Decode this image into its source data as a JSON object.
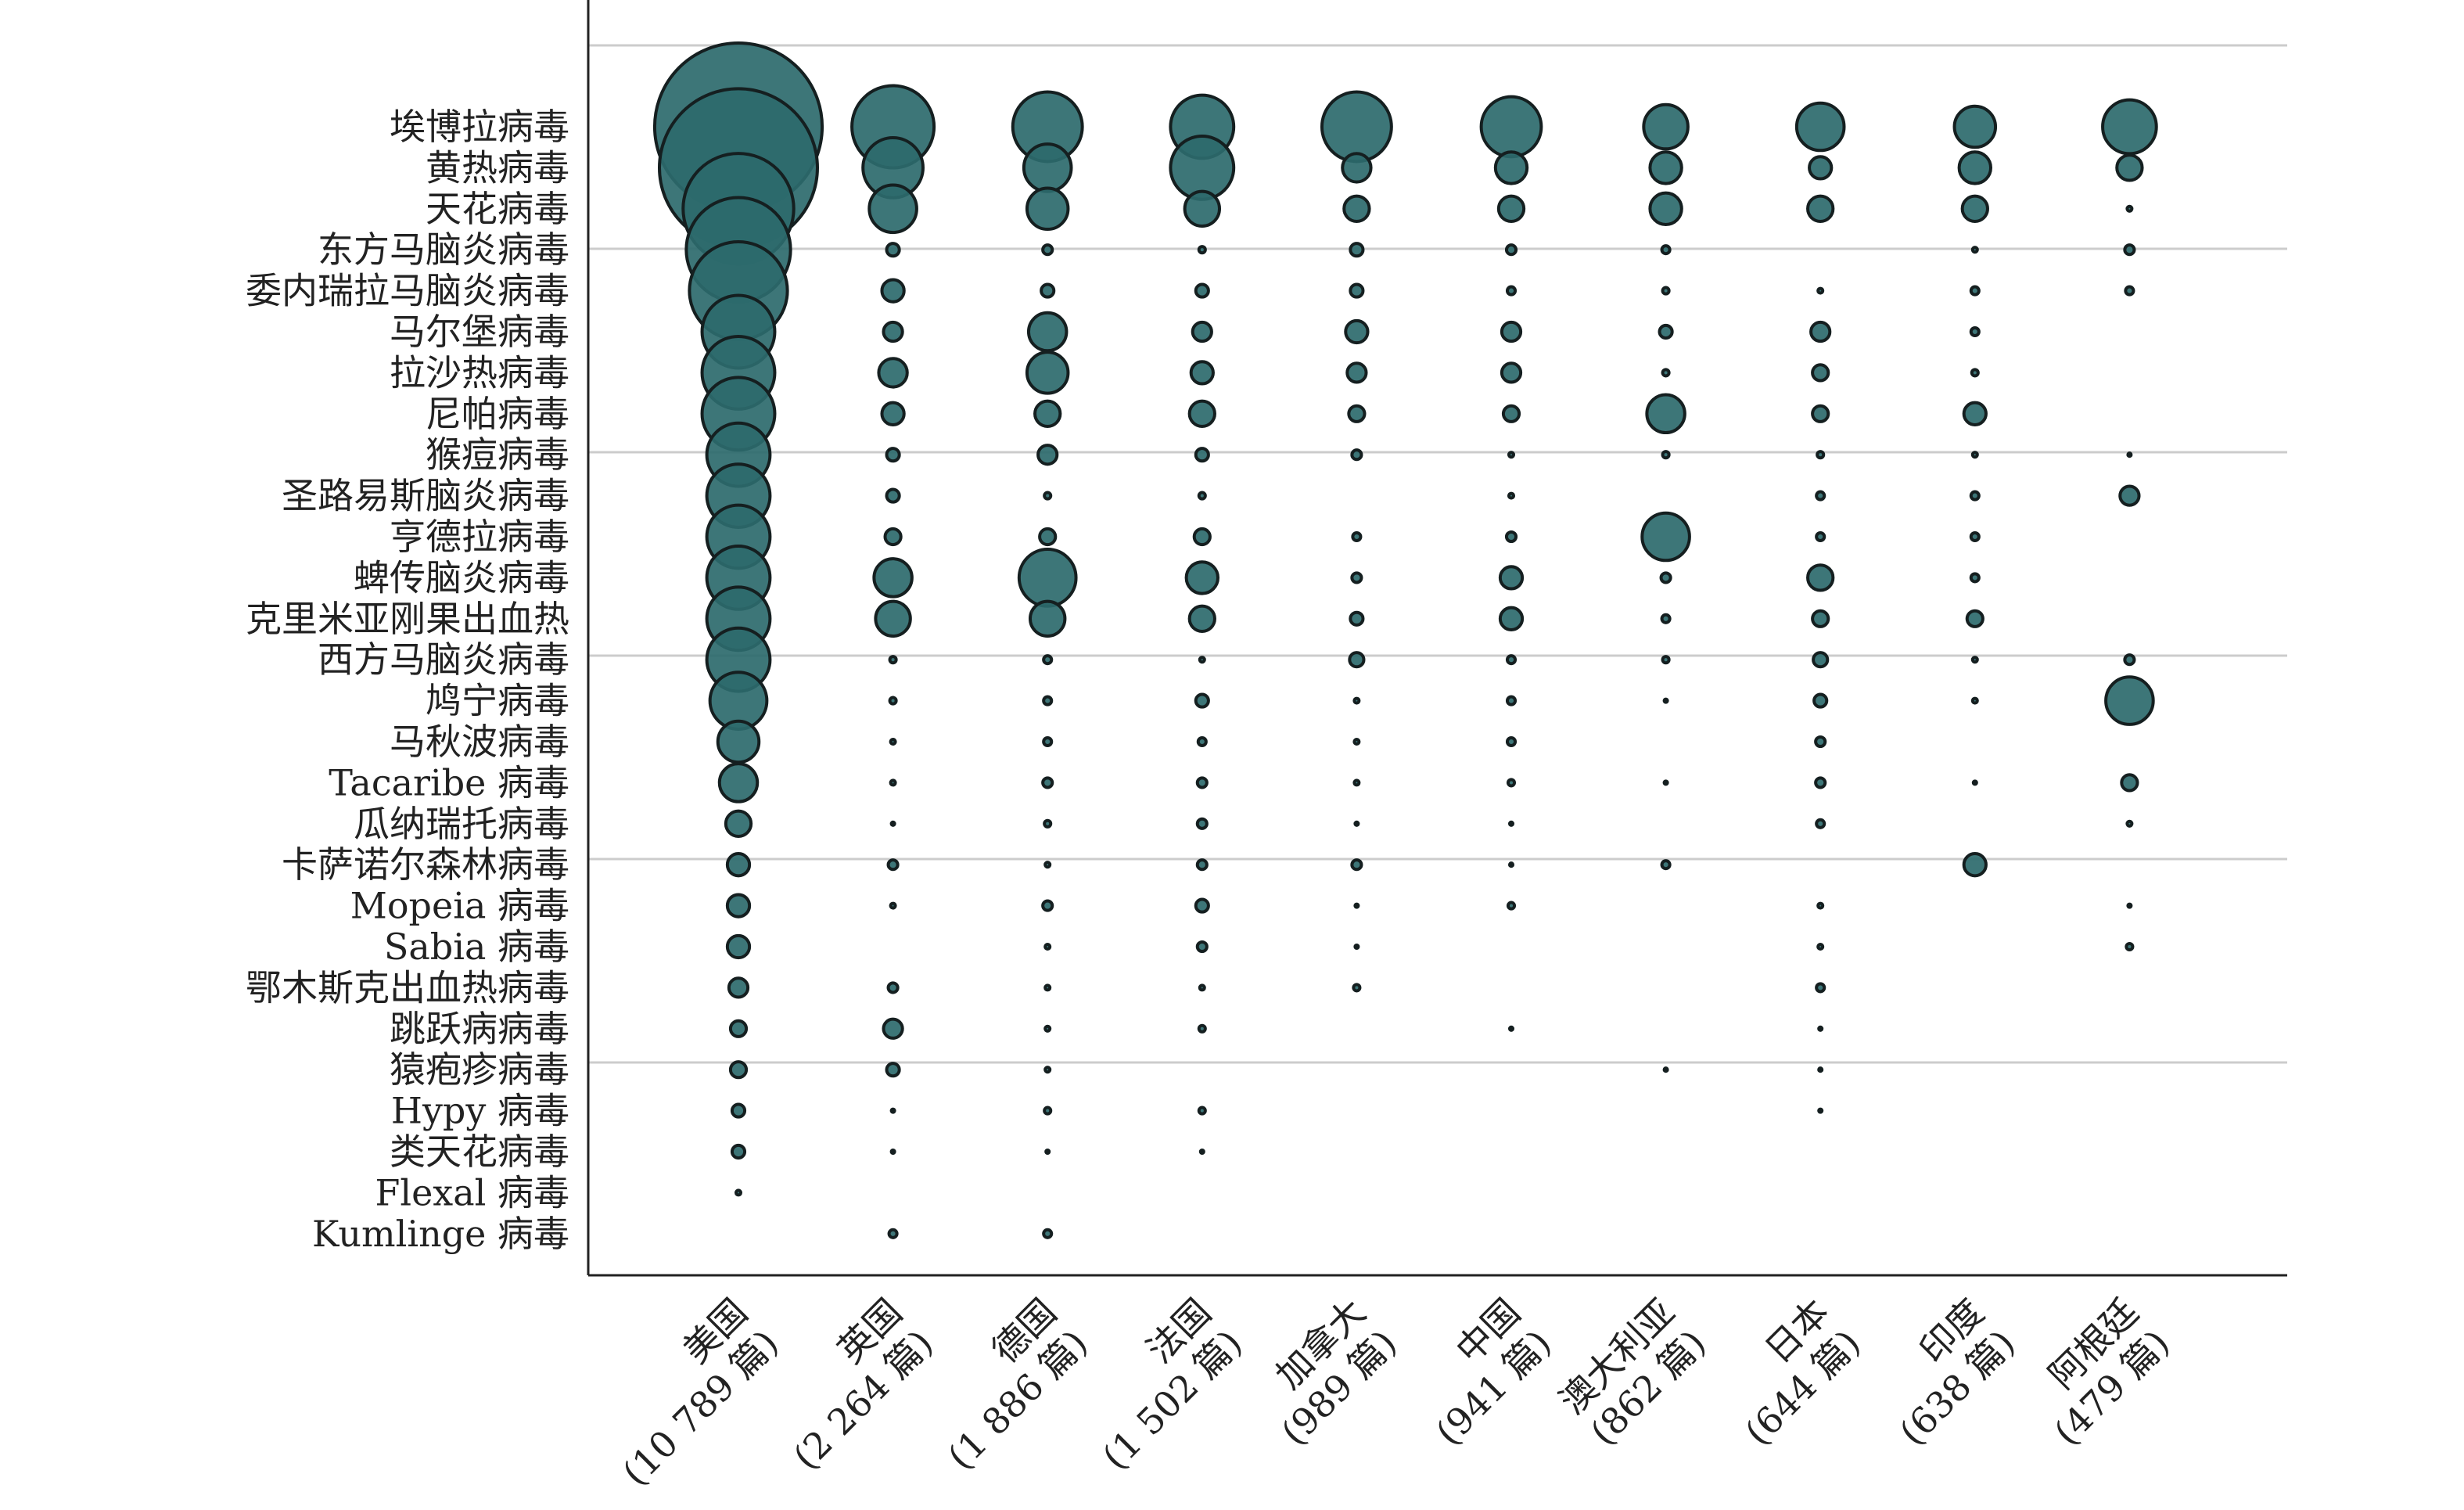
{
  "chart_data": {
    "type": "scatter",
    "subtype": "bubble",
    "title": "",
    "xlabel": "",
    "ylabel": "",
    "grid": "horizontal",
    "colors": {
      "bubble_fill": "#2d6a6d",
      "bubble_stroke": "#151f20",
      "grid": "#cccccc",
      "axis": "#222222"
    },
    "countries": [
      {
        "name": "美国",
        "count": "(10 789 篇)"
      },
      {
        "name": "英国",
        "count": "(2 264 篇)"
      },
      {
        "name": "德国",
        "count": "(1 886 篇)"
      },
      {
        "name": "法国",
        "count": "(1 502 篇)"
      },
      {
        "name": "加拿大",
        "count": "(989 篇)"
      },
      {
        "name": "中国",
        "count": "(941 篇)"
      },
      {
        "name": "澳大利亚",
        "count": "(862 篇)"
      },
      {
        "name": "日本",
        "count": "(644 篇)"
      },
      {
        "name": "印度",
        "count": "(638 篇)"
      },
      {
        "name": "阿根廷",
        "count": "(479 篇)"
      }
    ],
    "viruses": [
      "埃博拉病毒",
      "黄热病毒",
      "天花病毒",
      "东方马脑炎病毒",
      "委内瑞拉马脑炎病毒",
      "马尔堡病毒",
      "拉沙热病毒",
      "尼帕病毒",
      "猴痘病毒",
      "圣路易斯脑炎病毒",
      "亨德拉病毒",
      "蜱传脑炎病毒",
      "克里米亚刚果出血热",
      "西方马脑炎病毒",
      "鸠宁病毒",
      "马秋波病毒",
      "Tacaribe 病毒",
      "瓜纳瑞托病毒",
      "卡萨诺尔森林病毒",
      "Mopeia 病毒",
      "Sabia 病毒",
      "鄂木斯克出血热病毒",
      "跳跃病病毒",
      "猿疱疹病毒",
      "Hypy 病毒",
      "类天花病毒",
      "Flexal 病毒",
      "Kumlinge 病毒"
    ],
    "bubble_sizes_note": "relative bubble diameter per country (rows) x virus (cols); 0 = no bubble",
    "bubble_sizes": [
      [
        106,
        100,
        70,
        66,
        62,
        46,
        46,
        46,
        40,
        40,
        40,
        40,
        40,
        40,
        36,
        26,
        24,
        16,
        14,
        14,
        14,
        12,
        10,
        10,
        8,
        8,
        3,
        0
      ],
      [
        52,
        38,
        30,
        8,
        14,
        12,
        18,
        14,
        8,
        8,
        10,
        24,
        22,
        4,
        4,
        3,
        3,
        2,
        6,
        3,
        0,
        6,
        12,
        8,
        2,
        2,
        0,
        5
      ],
      [
        44,
        30,
        26,
        6,
        8,
        24,
        26,
        16,
        12,
        4,
        10,
        36,
        22,
        5,
        5,
        5,
        6,
        4,
        3,
        6,
        3,
        3,
        3,
        3,
        4,
        2,
        0,
        5
      ],
      [
        40,
        40,
        22,
        4,
        8,
        12,
        14,
        16,
        8,
        4,
        10,
        20,
        16,
        3,
        8,
        5,
        6,
        6,
        6,
        8,
        6,
        3,
        4,
        0,
        4,
        2,
        0,
        0
      ],
      [
        44,
        18,
        16,
        8,
        8,
        14,
        12,
        10,
        6,
        0,
        5,
        6,
        8,
        9,
        3,
        3,
        3,
        2,
        6,
        2,
        2,
        4,
        0,
        0,
        0,
        0,
        0,
        0
      ],
      [
        38,
        20,
        16,
        6,
        5,
        12,
        12,
        10,
        3,
        3,
        6,
        14,
        14,
        5,
        5,
        5,
        4,
        2,
        2,
        4,
        0,
        0,
        2,
        0,
        0,
        0,
        0,
        0
      ],
      [
        28,
        20,
        20,
        5,
        4,
        8,
        4,
        24,
        4,
        0,
        30,
        6,
        5,
        4,
        2,
        0,
        2,
        0,
        5,
        0,
        0,
        0,
        0,
        2,
        0,
        0,
        0,
        0
      ],
      [
        30,
        14,
        16,
        0,
        3,
        12,
        10,
        10,
        4,
        5,
        5,
        16,
        10,
        9,
        8,
        6,
        6,
        5,
        0,
        3,
        3,
        5,
        2,
        2,
        2,
        0,
        0,
        0
      ],
      [
        26,
        20,
        16,
        3,
        5,
        5,
        4,
        14,
        3,
        5,
        5,
        5,
        10,
        3,
        3,
        0,
        2,
        0,
        14,
        0,
        0,
        0,
        0,
        0,
        0,
        0,
        0,
        0
      ],
      [
        34,
        16,
        3,
        6,
        5,
        0,
        0,
        0,
        2,
        12,
        0,
        0,
        0,
        6,
        30,
        0,
        10,
        3,
        0,
        2,
        4,
        0,
        0,
        0,
        0,
        0,
        0,
        0
      ]
    ]
  }
}
